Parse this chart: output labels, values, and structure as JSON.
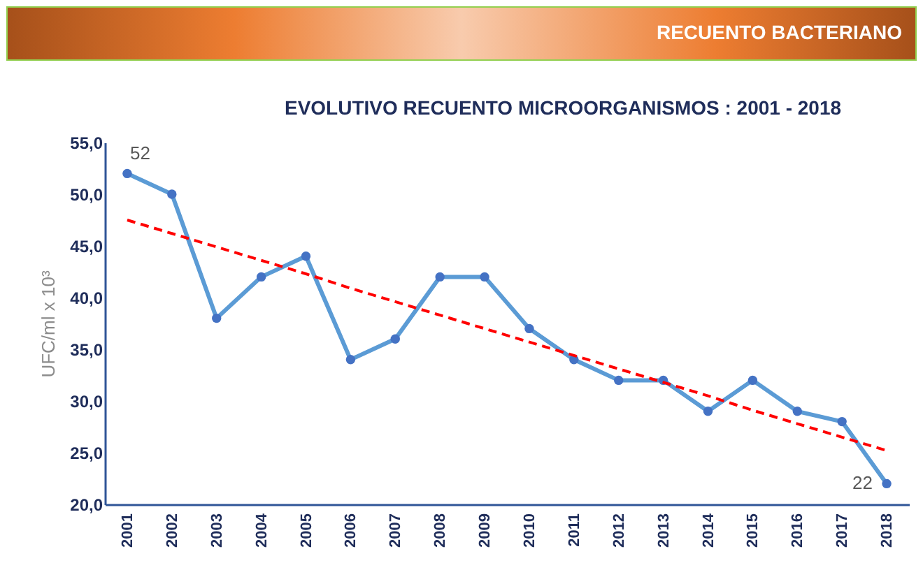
{
  "chart_data": {
    "type": "line",
    "title": "EVOLUTIVO RECUENTO MICROORGANISMOS : 2001 - 2018",
    "annotations": [
      "RECUENTO BACTERIANO"
    ],
    "ylabel": "UFC/ml x 10³",
    "categories": [
      "2001",
      "2002",
      "2003",
      "2004",
      "2005",
      "2006",
      "2007",
      "2008",
      "2009",
      "2010",
      "2011",
      "2012",
      "2013",
      "2014",
      "2015",
      "2016",
      "2017",
      "2018"
    ],
    "series": [
      {
        "color": "#5b9bd5",
        "marker": "circle",
        "line_style": "solid",
        "values": [
          52,
          50,
          38,
          42,
          44,
          34,
          36,
          42,
          42,
          37,
          34,
          32,
          32,
          29,
          32,
          29,
          28,
          22
        ],
        "value_labels": [
          "52",
          null,
          null,
          null,
          null,
          null,
          null,
          null,
          null,
          null,
          null,
          null,
          null,
          null,
          null,
          null,
          null,
          "22"
        ]
      },
      {
        "type": "line",
        "color": "#ff0000",
        "marker": "none",
        "line_style": "dashed",
        "values": [
          47.5,
          46.2,
          44.9,
          43.6,
          42.3,
          40.9,
          39.6,
          38.3,
          37.0,
          35.7,
          34.4,
          33.1,
          31.8,
          30.5,
          29.1,
          27.8,
          26.5,
          25.2
        ]
      }
    ],
    "ylim": [
      20,
      55
    ],
    "yticks": [
      {
        "value": 20,
        "label": "20,0"
      },
      {
        "value": 25,
        "label": "25,0"
      },
      {
        "value": 30,
        "label": "30,0"
      },
      {
        "value": 35,
        "label": "35,0"
      },
      {
        "value": 40,
        "label": "40,0"
      },
      {
        "value": 45,
        "label": "45,0"
      },
      {
        "value": 50,
        "label": "50,0"
      },
      {
        "value": 55,
        "label": "55,0"
      }
    ],
    "grid": false
  }
}
